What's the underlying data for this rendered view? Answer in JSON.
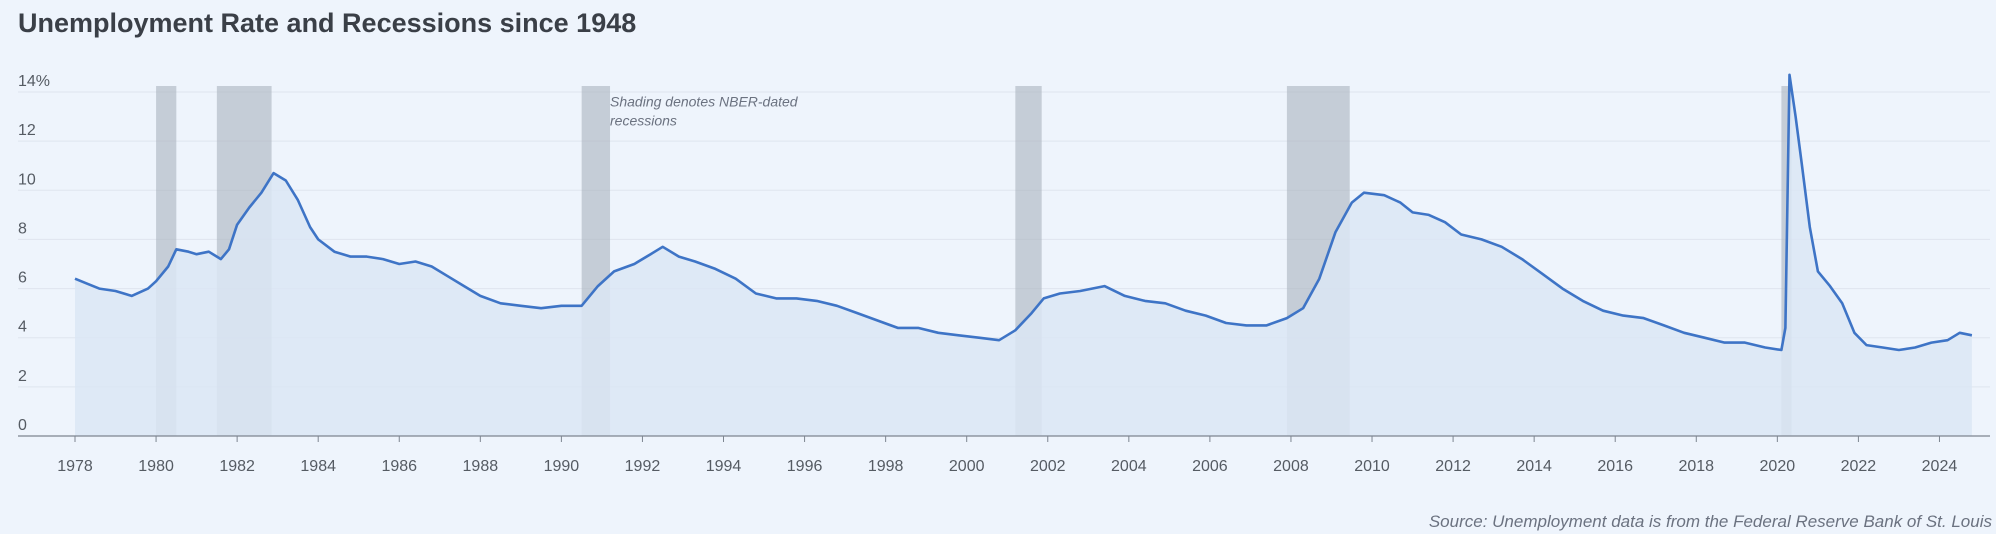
{
  "header": {
    "title": "Unemployment Rate and Recessions since 1948"
  },
  "footer": {
    "source": "Source: Unemployment data is from the Federal Reserve Bank of St. Louis"
  },
  "colors": {
    "line": "#3e74c6",
    "area": "#dbe6f5",
    "recession": "#aab2be",
    "grid": "#dfe5ee"
  },
  "chart_data": {
    "type": "area",
    "title": "Unemployment Rate and Recessions since 1948",
    "xlabel": "",
    "ylabel": "",
    "xlim": [
      1978,
      2025
    ],
    "ylim": [
      0,
      14
    ],
    "y_ticks": [
      0,
      2,
      4,
      6,
      8,
      10,
      12,
      14
    ],
    "y_tick_labels": [
      "0",
      "2",
      "4",
      "6",
      "8",
      "10",
      "12",
      "14%"
    ],
    "x_ticks": [
      1978,
      1980,
      1982,
      1984,
      1986,
      1988,
      1990,
      1992,
      1994,
      1996,
      1998,
      2000,
      2002,
      2004,
      2006,
      2008,
      2010,
      2012,
      2014,
      2016,
      2018,
      2020,
      2022,
      2024
    ],
    "grid": true,
    "annotation": {
      "line1": "Shading denotes NBER-dated",
      "line2": "recessions",
      "x": 1991.2,
      "y": 13.4
    },
    "recessions": [
      {
        "start": 1980.0,
        "end": 1980.5
      },
      {
        "start": 1981.5,
        "end": 1982.85
      },
      {
        "start": 1990.5,
        "end": 1991.2
      },
      {
        "start": 2001.2,
        "end": 2001.85
      },
      {
        "start": 2007.9,
        "end": 2009.45
      },
      {
        "start": 2020.1,
        "end": 2020.35
      }
    ],
    "series": [
      {
        "values": [
          [
            1978.0,
            6.4
          ],
          [
            1978.3,
            6.2
          ],
          [
            1978.6,
            6.0
          ],
          [
            1979.0,
            5.9
          ],
          [
            1979.4,
            5.7
          ],
          [
            1979.8,
            6.0
          ],
          [
            1980.0,
            6.3
          ],
          [
            1980.3,
            6.9
          ],
          [
            1980.5,
            7.6
          ],
          [
            1980.8,
            7.5
          ],
          [
            1981.0,
            7.4
          ],
          [
            1981.3,
            7.5
          ],
          [
            1981.6,
            7.2
          ],
          [
            1981.8,
            7.6
          ],
          [
            1982.0,
            8.6
          ],
          [
            1982.3,
            9.3
          ],
          [
            1982.6,
            9.9
          ],
          [
            1982.9,
            10.7
          ],
          [
            1983.2,
            10.4
          ],
          [
            1983.5,
            9.6
          ],
          [
            1983.8,
            8.5
          ],
          [
            1984.0,
            8.0
          ],
          [
            1984.4,
            7.5
          ],
          [
            1984.8,
            7.3
          ],
          [
            1985.2,
            7.3
          ],
          [
            1985.6,
            7.2
          ],
          [
            1986.0,
            7.0
          ],
          [
            1986.4,
            7.1
          ],
          [
            1986.8,
            6.9
          ],
          [
            1987.2,
            6.5
          ],
          [
            1987.6,
            6.1
          ],
          [
            1988.0,
            5.7
          ],
          [
            1988.5,
            5.4
          ],
          [
            1989.0,
            5.3
          ],
          [
            1989.5,
            5.2
          ],
          [
            1990.0,
            5.3
          ],
          [
            1990.5,
            5.3
          ],
          [
            1990.9,
            6.1
          ],
          [
            1991.3,
            6.7
          ],
          [
            1991.8,
            7.0
          ],
          [
            1992.2,
            7.4
          ],
          [
            1992.5,
            7.7
          ],
          [
            1992.9,
            7.3
          ],
          [
            1993.3,
            7.1
          ],
          [
            1993.8,
            6.8
          ],
          [
            1994.3,
            6.4
          ],
          [
            1994.8,
            5.8
          ],
          [
            1995.3,
            5.6
          ],
          [
            1995.8,
            5.6
          ],
          [
            1996.3,
            5.5
          ],
          [
            1996.8,
            5.3
          ],
          [
            1997.3,
            5.0
          ],
          [
            1997.8,
            4.7
          ],
          [
            1998.3,
            4.4
          ],
          [
            1998.8,
            4.4
          ],
          [
            1999.3,
            4.2
          ],
          [
            1999.8,
            4.1
          ],
          [
            2000.3,
            4.0
          ],
          [
            2000.8,
            3.9
          ],
          [
            2001.2,
            4.3
          ],
          [
            2001.6,
            5.0
          ],
          [
            2001.9,
            5.6
          ],
          [
            2002.3,
            5.8
          ],
          [
            2002.8,
            5.9
          ],
          [
            2003.4,
            6.1
          ],
          [
            2003.9,
            5.7
          ],
          [
            2004.4,
            5.5
          ],
          [
            2004.9,
            5.4
          ],
          [
            2005.4,
            5.1
          ],
          [
            2005.9,
            4.9
          ],
          [
            2006.4,
            4.6
          ],
          [
            2006.9,
            4.5
          ],
          [
            2007.4,
            4.5
          ],
          [
            2007.9,
            4.8
          ],
          [
            2008.3,
            5.2
          ],
          [
            2008.7,
            6.4
          ],
          [
            2009.1,
            8.3
          ],
          [
            2009.5,
            9.5
          ],
          [
            2009.8,
            9.9
          ],
          [
            2010.3,
            9.8
          ],
          [
            2010.7,
            9.5
          ],
          [
            2011.0,
            9.1
          ],
          [
            2011.4,
            9.0
          ],
          [
            2011.8,
            8.7
          ],
          [
            2012.2,
            8.2
          ],
          [
            2012.7,
            8.0
          ],
          [
            2013.2,
            7.7
          ],
          [
            2013.7,
            7.2
          ],
          [
            2014.2,
            6.6
          ],
          [
            2014.7,
            6.0
          ],
          [
            2015.2,
            5.5
          ],
          [
            2015.7,
            5.1
          ],
          [
            2016.2,
            4.9
          ],
          [
            2016.7,
            4.8
          ],
          [
            2017.2,
            4.5
          ],
          [
            2017.7,
            4.2
          ],
          [
            2018.2,
            4.0
          ],
          [
            2018.7,
            3.8
          ],
          [
            2019.2,
            3.8
          ],
          [
            2019.7,
            3.6
          ],
          [
            2020.1,
            3.5
          ],
          [
            2020.2,
            4.4
          ],
          [
            2020.3,
            14.7
          ],
          [
            2020.45,
            13.0
          ],
          [
            2020.6,
            11.1
          ],
          [
            2020.8,
            8.5
          ],
          [
            2021.0,
            6.7
          ],
          [
            2021.3,
            6.1
          ],
          [
            2021.6,
            5.4
          ],
          [
            2021.9,
            4.2
          ],
          [
            2022.2,
            3.7
          ],
          [
            2022.6,
            3.6
          ],
          [
            2023.0,
            3.5
          ],
          [
            2023.4,
            3.6
          ],
          [
            2023.8,
            3.8
          ],
          [
            2024.2,
            3.9
          ],
          [
            2024.5,
            4.2
          ],
          [
            2024.8,
            4.1
          ]
        ]
      }
    ]
  }
}
